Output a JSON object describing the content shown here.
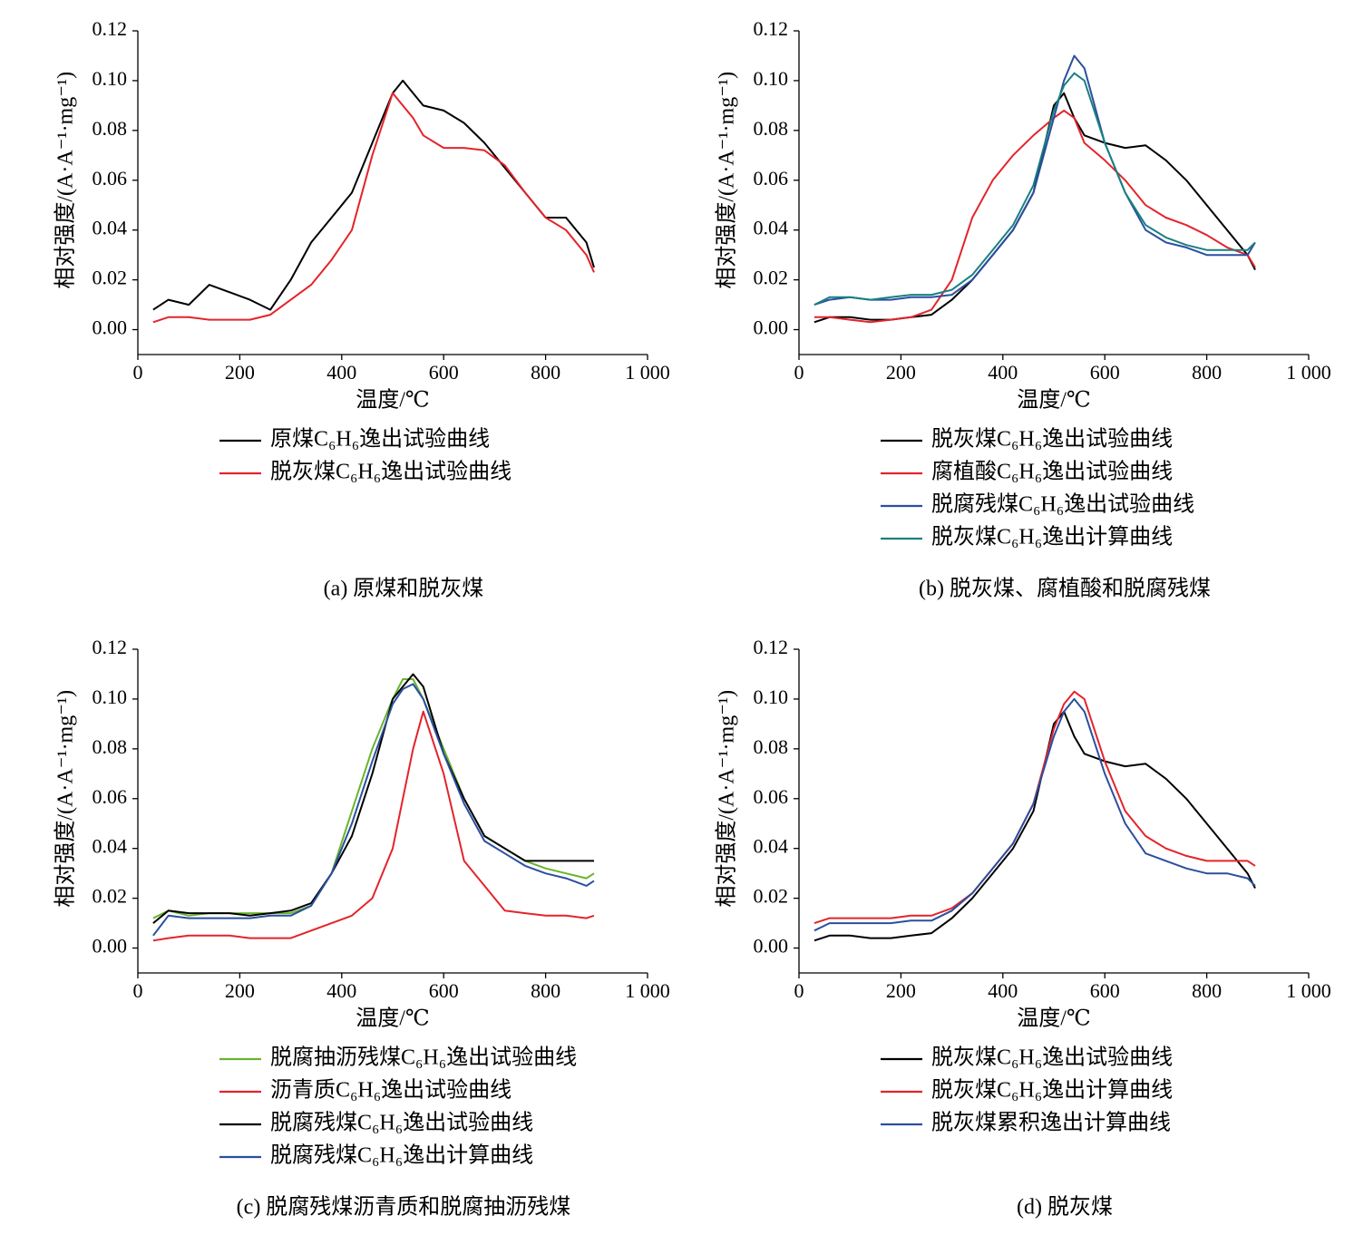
{
  "chart_data": [
    {
      "type": "line",
      "caption": "(a) 原煤和脱灰煤",
      "xlabel": "温度/℃",
      "ylabel": "相对强度/(A·A⁻¹·mg⁻¹)",
      "legend": "below",
      "xlim": [
        0,
        1000
      ],
      "ylim": [
        -0.01,
        0.12
      ],
      "xticks": [
        0,
        200,
        400,
        600,
        800,
        {
          "value": 1000,
          "label": "1 000"
        }
      ],
      "yticks": [
        {
          "value": 0,
          "label": "0.00"
        },
        {
          "value": 0.02,
          "label": "0.02"
        },
        {
          "value": 0.04,
          "label": "0.04"
        },
        {
          "value": 0.06,
          "label": "0.06"
        },
        {
          "value": 0.08,
          "label": "0.08"
        },
        {
          "value": 0.1,
          "label": "0.10"
        },
        {
          "value": 0.12,
          "label": "0.12"
        }
      ],
      "x": [
        30,
        60,
        100,
        140,
        180,
        220,
        260,
        300,
        340,
        380,
        420,
        460,
        500,
        520,
        540,
        560,
        600,
        640,
        680,
        720,
        760,
        800,
        840,
        880,
        895
      ],
      "series": [
        {
          "name": "原煤C₆H₆逸出试验曲线",
          "color": "#000000",
          "values": [
            0.008,
            0.012,
            0.01,
            0.018,
            0.015,
            0.012,
            0.008,
            0.02,
            0.035,
            0.045,
            0.055,
            0.075,
            0.095,
            0.1,
            0.095,
            0.09,
            0.088,
            0.083,
            0.075,
            0.065,
            0.055,
            0.045,
            0.045,
            0.035,
            0.025
          ]
        },
        {
          "name": "脱灰煤C₆H₆逸出试验曲线",
          "color": "#e3242b",
          "values": [
            0.003,
            0.005,
            0.005,
            0.004,
            0.004,
            0.004,
            0.006,
            0.012,
            0.018,
            0.028,
            0.04,
            0.07,
            0.095,
            0.09,
            0.085,
            0.078,
            0.073,
            0.073,
            0.072,
            0.066,
            0.055,
            0.045,
            0.04,
            0.03,
            0.023
          ]
        }
      ]
    },
    {
      "type": "line",
      "caption": "(b) 脱灰煤、腐植酸和脱腐残煤",
      "xlabel": "温度/℃",
      "ylabel": "相对强度/(A·A⁻¹·mg⁻¹)",
      "legend": "below",
      "xlim": [
        0,
        1000
      ],
      "ylim": [
        -0.01,
        0.12
      ],
      "xticks": [
        0,
        200,
        400,
        600,
        800,
        {
          "value": 1000,
          "label": "1 000"
        }
      ],
      "yticks": [
        {
          "value": 0,
          "label": "0.00"
        },
        {
          "value": 0.02,
          "label": "0.02"
        },
        {
          "value": 0.04,
          "label": "0.04"
        },
        {
          "value": 0.06,
          "label": "0.06"
        },
        {
          "value": 0.08,
          "label": "0.08"
        },
        {
          "value": 0.1,
          "label": "0.10"
        },
        {
          "value": 0.12,
          "label": "0.12"
        }
      ],
      "x": [
        30,
        60,
        100,
        140,
        180,
        220,
        260,
        300,
        340,
        380,
        420,
        460,
        500,
        520,
        540,
        560,
        600,
        640,
        680,
        720,
        760,
        800,
        840,
        880,
        895
      ],
      "series": [
        {
          "name": "脱灰煤C₆H₆逸出试验曲线",
          "color": "#000000",
          "values": [
            0.003,
            0.005,
            0.005,
            0.004,
            0.004,
            0.005,
            0.006,
            0.012,
            0.02,
            0.03,
            0.04,
            0.055,
            0.09,
            0.095,
            0.085,
            0.078,
            0.075,
            0.073,
            0.074,
            0.068,
            0.06,
            0.05,
            0.04,
            0.03,
            0.024
          ]
        },
        {
          "name": "腐植酸C₆H₆逸出试验曲线",
          "color": "#e3242b",
          "values": [
            0.005,
            0.005,
            0.004,
            0.003,
            0.004,
            0.005,
            0.008,
            0.02,
            0.045,
            0.06,
            0.07,
            0.078,
            0.085,
            0.088,
            0.085,
            0.075,
            0.068,
            0.06,
            0.05,
            0.045,
            0.042,
            0.038,
            0.033,
            0.03,
            0.025
          ]
        },
        {
          "name": "脱腐残煤C₆H₆逸出试验曲线",
          "color": "#2b4fa0",
          "values": [
            0.01,
            0.012,
            0.013,
            0.012,
            0.012,
            0.013,
            0.013,
            0.014,
            0.02,
            0.03,
            0.04,
            0.055,
            0.085,
            0.1,
            0.11,
            0.105,
            0.075,
            0.055,
            0.04,
            0.035,
            0.033,
            0.03,
            0.03,
            0.03,
            0.035
          ]
        },
        {
          "name": "脱灰煤C₆H₆逸出计算曲线",
          "color": "#1a8080",
          "values": [
            0.01,
            0.013,
            0.013,
            0.012,
            0.013,
            0.014,
            0.014,
            0.016,
            0.022,
            0.032,
            0.042,
            0.058,
            0.088,
            0.098,
            0.103,
            0.1,
            0.075,
            0.055,
            0.042,
            0.037,
            0.034,
            0.032,
            0.032,
            0.032,
            0.035
          ]
        }
      ]
    },
    {
      "type": "line",
      "caption": "(c) 脱腐残煤沥青质和脱腐抽沥残煤",
      "xlabel": "温度/℃",
      "ylabel": "相对强度/(A·A⁻¹·mg⁻¹)",
      "legend": "below",
      "xlim": [
        0,
        1000
      ],
      "ylim": [
        -0.01,
        0.12
      ],
      "xticks": [
        0,
        200,
        400,
        600,
        800,
        {
          "value": 1000,
          "label": "1 000"
        }
      ],
      "yticks": [
        {
          "value": 0,
          "label": "0.00"
        },
        {
          "value": 0.02,
          "label": "0.02"
        },
        {
          "value": 0.04,
          "label": "0.04"
        },
        {
          "value": 0.06,
          "label": "0.06"
        },
        {
          "value": 0.08,
          "label": "0.08"
        },
        {
          "value": 0.1,
          "label": "0.10"
        },
        {
          "value": 0.12,
          "label": "0.12"
        }
      ],
      "x": [
        30,
        60,
        100,
        140,
        180,
        220,
        260,
        300,
        340,
        380,
        420,
        460,
        500,
        520,
        540,
        560,
        600,
        640,
        680,
        720,
        760,
        800,
        840,
        880,
        895
      ],
      "series": [
        {
          "name": "脱腐抽沥残煤C₆H₆逸出试验曲线",
          "color": "#6ab42d",
          "values": [
            0.012,
            0.015,
            0.013,
            0.014,
            0.014,
            0.014,
            0.014,
            0.014,
            0.017,
            0.03,
            0.055,
            0.08,
            0.1,
            0.108,
            0.108,
            0.1,
            0.08,
            0.06,
            0.045,
            0.04,
            0.035,
            0.032,
            0.03,
            0.028,
            0.03
          ]
        },
        {
          "name": "沥青质C₆H₆逸出试验曲线",
          "color": "#e3242b",
          "values": [
            0.003,
            0.004,
            0.005,
            0.005,
            0.005,
            0.004,
            0.004,
            0.004,
            0.007,
            0.01,
            0.013,
            0.02,
            0.04,
            0.06,
            0.08,
            0.095,
            0.07,
            0.035,
            0.025,
            0.015,
            0.014,
            0.013,
            0.013,
            0.012,
            0.013
          ]
        },
        {
          "name": "脱腐残煤C₆H₆逸出试验曲线",
          "color": "#000000",
          "values": [
            0.01,
            0.015,
            0.014,
            0.014,
            0.014,
            0.013,
            0.014,
            0.015,
            0.018,
            0.03,
            0.045,
            0.07,
            0.1,
            0.105,
            0.11,
            0.105,
            0.078,
            0.06,
            0.045,
            0.04,
            0.035,
            0.035,
            0.035,
            0.035,
            0.035
          ]
        },
        {
          "name": "脱腐残煤C₆H₆逸出计算曲线",
          "color": "#2b4fa0",
          "values": [
            0.005,
            0.013,
            0.012,
            0.012,
            0.012,
            0.012,
            0.013,
            0.013,
            0.017,
            0.03,
            0.05,
            0.075,
            0.098,
            0.104,
            0.106,
            0.1,
            0.078,
            0.058,
            0.043,
            0.038,
            0.033,
            0.03,
            0.028,
            0.025,
            0.027
          ]
        }
      ]
    },
    {
      "type": "line",
      "caption": "(d) 脱灰煤",
      "xlabel": "温度/℃",
      "ylabel": "相对强度/(A·A⁻¹·mg⁻¹)",
      "legend": "below",
      "xlim": [
        0,
        1000
      ],
      "ylim": [
        -0.01,
        0.12
      ],
      "xticks": [
        0,
        200,
        400,
        600,
        800,
        {
          "value": 1000,
          "label": "1 000"
        }
      ],
      "yticks": [
        {
          "value": 0,
          "label": "0.00"
        },
        {
          "value": 0.02,
          "label": "0.02"
        },
        {
          "value": 0.04,
          "label": "0.04"
        },
        {
          "value": 0.06,
          "label": "0.06"
        },
        {
          "value": 0.08,
          "label": "0.08"
        },
        {
          "value": 0.1,
          "label": "0.10"
        },
        {
          "value": 0.12,
          "label": "0.12"
        }
      ],
      "x": [
        30,
        60,
        100,
        140,
        180,
        220,
        260,
        300,
        340,
        380,
        420,
        460,
        500,
        520,
        540,
        560,
        600,
        640,
        680,
        720,
        760,
        800,
        840,
        880,
        895
      ],
      "series": [
        {
          "name": "脱灰煤C₆H₆逸出试验曲线",
          "color": "#000000",
          "values": [
            0.003,
            0.005,
            0.005,
            0.004,
            0.004,
            0.005,
            0.006,
            0.012,
            0.02,
            0.03,
            0.04,
            0.055,
            0.09,
            0.095,
            0.085,
            0.078,
            0.075,
            0.073,
            0.074,
            0.068,
            0.06,
            0.05,
            0.04,
            0.03,
            0.024
          ]
        },
        {
          "name": "脱灰煤C₆H₆逸出计算曲线",
          "color": "#e3242b",
          "values": [
            0.01,
            0.012,
            0.012,
            0.012,
            0.012,
            0.013,
            0.013,
            0.016,
            0.022,
            0.032,
            0.042,
            0.058,
            0.088,
            0.098,
            0.103,
            0.1,
            0.075,
            0.055,
            0.045,
            0.04,
            0.037,
            0.035,
            0.035,
            0.035,
            0.033
          ]
        },
        {
          "name": "脱灰煤累积逸出计算曲线",
          "color": "#2b4fa0",
          "values": [
            0.007,
            0.01,
            0.01,
            0.01,
            0.01,
            0.011,
            0.011,
            0.015,
            0.022,
            0.032,
            0.042,
            0.058,
            0.085,
            0.095,
            0.1,
            0.095,
            0.07,
            0.05,
            0.038,
            0.035,
            0.032,
            0.03,
            0.03,
            0.028,
            0.025
          ]
        }
      ]
    }
  ]
}
